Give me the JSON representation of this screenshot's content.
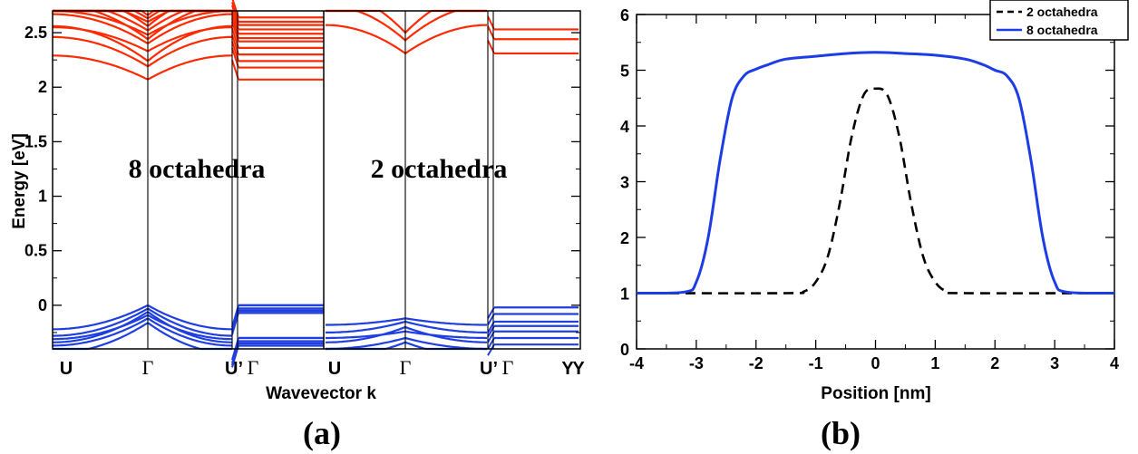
{
  "captions": {
    "a": "(a)",
    "b": "(b)"
  },
  "colors": {
    "conduction": "#ff2a00",
    "valence": "#1f3fe0",
    "blue_line": "#1c3de6",
    "black": "#000000"
  },
  "chart_data": [
    {
      "type": "line",
      "subtype": "band-structure",
      "title": "",
      "xlabel": "Wavevector k",
      "ylabel": "Energy [eV]",
      "ylim": [
        -0.4,
        2.7
      ],
      "yticks": [
        0,
        0.5,
        1,
        1.5,
        2,
        2.5
      ],
      "ytick_labels": [
        "0",
        "0.5",
        "1",
        "1.5",
        "2",
        "2.5"
      ],
      "kpoint_labels": [
        "U",
        "Γ",
        "U’",
        "Γ",
        "Y",
        "U",
        "Γ",
        "U’",
        "Γ",
        "Y"
      ],
      "grid": false,
      "panels": [
        {
          "annotation": "8 octahedra",
          "conduction": {
            "segment1_mins": [
              2.07,
              2.19,
              2.24,
              2.33,
              2.4,
              2.44,
              2.48,
              2.52,
              2.56,
              2.6,
              2.63,
              2.66
            ],
            "segment2_levels": [
              2.07,
              2.18,
              2.24,
              2.3,
              2.36,
              2.42,
              2.45,
              2.49,
              2.53,
              2.57,
              2.6,
              2.64
            ]
          },
          "valence": {
            "segment1_maxes": [
              0.0,
              -0.03,
              -0.06,
              -0.09,
              -0.12,
              -0.16
            ],
            "segment2_levels": [
              0.0,
              -0.03,
              -0.05,
              -0.07,
              -0.3,
              -0.33,
              -0.35,
              -0.37
            ]
          }
        },
        {
          "annotation": "2 octahedra",
          "conduction": {
            "segment1_mins": [
              2.31,
              2.43,
              2.5
            ],
            "segment2_levels": [
              2.31,
              2.44,
              2.53
            ]
          },
          "valence": {
            "segment1_maxes": [
              -0.12,
              -0.15,
              -0.2,
              -0.24,
              -0.3,
              -0.34
            ],
            "segment2_levels": [
              -0.02,
              -0.08,
              -0.15,
              -0.19,
              -0.24,
              -0.3,
              -0.36
            ]
          }
        }
      ]
    },
    {
      "type": "line",
      "title": "",
      "xlabel": "Position [nm]",
      "ylabel": "",
      "xlim": [
        -4,
        4
      ],
      "ylim": [
        0,
        6
      ],
      "xticks": [
        -4,
        -3,
        -2,
        -1,
        0,
        1,
        2,
        3,
        4
      ],
      "yticks": [
        0,
        1,
        2,
        3,
        4,
        5,
        6
      ],
      "legend": "top-right",
      "grid": false,
      "series": [
        {
          "name": "2 octahedra",
          "style": "dashed",
          "color": "#000000",
          "x": [
            -4,
            -1.5,
            -1.2,
            -1.0,
            -0.8,
            -0.6,
            -0.4,
            -0.2,
            0,
            0.2,
            0.4,
            0.6,
            0.8,
            1.0,
            1.2,
            1.5,
            4
          ],
          "y": [
            1.0,
            1.0,
            1.03,
            1.2,
            1.65,
            2.6,
            3.8,
            4.55,
            4.67,
            4.55,
            3.8,
            2.6,
            1.65,
            1.2,
            1.03,
            1.0,
            1.0
          ]
        },
        {
          "name": "8 octahedra",
          "style": "solid",
          "color": "#1c3de6",
          "x": [
            -4,
            -3.2,
            -3.0,
            -2.8,
            -2.6,
            -2.4,
            -2.2,
            -2.0,
            -1.8,
            -1.5,
            -1.0,
            -0.5,
            0,
            0.5,
            1.0,
            1.5,
            1.8,
            2.0,
            2.2,
            2.4,
            2.6,
            2.8,
            3.0,
            3.2,
            4
          ],
          "y": [
            1.0,
            1.02,
            1.2,
            2.0,
            3.4,
            4.5,
            4.9,
            5.02,
            5.1,
            5.2,
            5.25,
            5.3,
            5.32,
            5.3,
            5.27,
            5.2,
            5.1,
            5.0,
            4.9,
            4.5,
            3.4,
            2.0,
            1.2,
            1.02,
            1.0
          ]
        }
      ]
    }
  ]
}
